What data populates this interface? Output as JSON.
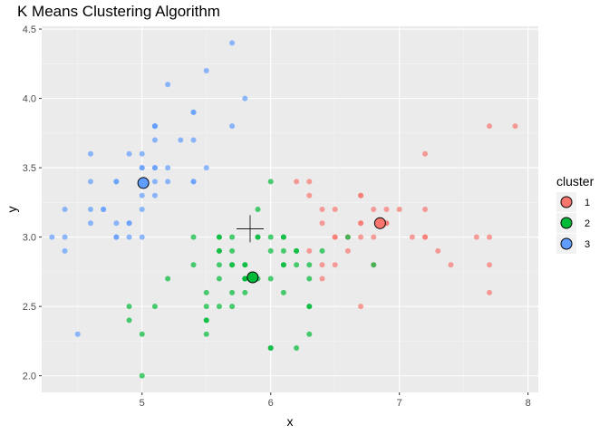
{
  "chart_data": {
    "type": "scatter",
    "title": "K Means Clustering Algorithm",
    "xlabel": "x",
    "ylabel": "y",
    "xlim": [
      4.22,
      8.08
    ],
    "ylim": [
      1.88,
      4.52
    ],
    "x_ticks": [
      5,
      6,
      7,
      8
    ],
    "y_ticks": [
      2.0,
      2.5,
      3.0,
      3.5,
      4.0,
      4.5
    ],
    "grid": true,
    "legend": {
      "title": "cluster",
      "placement": "right",
      "entries": [
        "1",
        "2",
        "3"
      ]
    },
    "colors": {
      "1": "#F8766D",
      "2": "#00BA38",
      "3": "#619CFF"
    },
    "series": [
      {
        "name": "1",
        "points": [
          [
            7.0,
            3.2
          ],
          [
            6.9,
            3.1
          ],
          [
            6.5,
            2.8
          ],
          [
            6.3,
            3.3
          ],
          [
            6.6,
            2.9
          ],
          [
            6.7,
            3.1
          ],
          [
            6.7,
            3.0
          ],
          [
            7.1,
            3.0
          ],
          [
            6.3,
            2.9
          ],
          [
            6.5,
            3.0
          ],
          [
            7.6,
            3.0
          ],
          [
            7.3,
            2.9
          ],
          [
            6.7,
            2.5
          ],
          [
            7.2,
            3.6
          ],
          [
            6.5,
            3.2
          ],
          [
            6.4,
            2.7
          ],
          [
            6.8,
            3.0
          ],
          [
            6.4,
            3.2
          ],
          [
            7.7,
            3.8
          ],
          [
            7.7,
            2.6
          ],
          [
            6.9,
            3.2
          ],
          [
            7.7,
            2.8
          ],
          [
            6.7,
            3.3
          ],
          [
            7.2,
            3.2
          ],
          [
            7.2,
            3.0
          ],
          [
            7.4,
            2.8
          ],
          [
            7.9,
            3.8
          ],
          [
            6.4,
            2.8
          ],
          [
            7.7,
            3.0
          ],
          [
            6.3,
            3.4
          ],
          [
            6.4,
            3.1
          ],
          [
            6.9,
            3.1
          ],
          [
            6.7,
            3.1
          ],
          [
            6.8,
            3.2
          ],
          [
            6.7,
            3.3
          ],
          [
            6.5,
            3.0
          ],
          [
            6.2,
            3.4
          ],
          [
            6.8,
            2.8
          ],
          [
            6.6,
            3.0
          ],
          [
            7.2,
            3.0
          ]
        ]
      },
      {
        "name": "2",
        "points": [
          [
            5.5,
            2.3
          ],
          [
            5.7,
            2.8
          ],
          [
            4.9,
            2.4
          ],
          [
            5.2,
            2.7
          ],
          [
            5.0,
            2.0
          ],
          [
            5.9,
            3.0
          ],
          [
            6.0,
            2.2
          ],
          [
            6.1,
            2.9
          ],
          [
            5.6,
            2.9
          ],
          [
            5.6,
            3.0
          ],
          [
            5.8,
            2.7
          ],
          [
            6.2,
            2.2
          ],
          [
            5.6,
            2.5
          ],
          [
            5.9,
            3.2
          ],
          [
            6.1,
            2.8
          ],
          [
            6.3,
            2.5
          ],
          [
            6.1,
            2.8
          ],
          [
            6.6,
            3.0
          ],
          [
            6.8,
            2.8
          ],
          [
            6.0,
            2.9
          ],
          [
            5.7,
            2.6
          ],
          [
            5.5,
            2.4
          ],
          [
            5.5,
            2.4
          ],
          [
            5.8,
            2.7
          ],
          [
            6.0,
            2.7
          ],
          [
            5.4,
            3.0
          ],
          [
            6.0,
            3.4
          ],
          [
            6.3,
            2.3
          ],
          [
            5.6,
            3.0
          ],
          [
            5.5,
            2.5
          ],
          [
            5.5,
            2.6
          ],
          [
            6.1,
            3.0
          ],
          [
            5.8,
            2.6
          ],
          [
            5.0,
            2.3
          ],
          [
            5.6,
            2.7
          ],
          [
            5.7,
            3.0
          ],
          [
            5.7,
            2.9
          ],
          [
            6.2,
            2.9
          ],
          [
            5.1,
            2.5
          ],
          [
            5.7,
            2.8
          ],
          [
            5.8,
            2.7
          ],
          [
            4.9,
            2.5
          ],
          [
            5.7,
            2.5
          ],
          [
            5.8,
            2.8
          ],
          [
            6.0,
            2.2
          ],
          [
            5.6,
            2.8
          ],
          [
            6.3,
            2.7
          ],
          [
            6.2,
            2.8
          ],
          [
            6.1,
            3.0
          ],
          [
            6.3,
            2.8
          ],
          [
            6.1,
            2.6
          ],
          [
            6.3,
            2.5
          ],
          [
            6.0,
            3.0
          ],
          [
            5.8,
            2.7
          ],
          [
            5.9,
            3.0
          ],
          [
            5.4,
            2.8
          ],
          [
            5.6,
            2.9
          ],
          [
            6.4,
            2.9
          ],
          [
            6.2,
            2.9
          ],
          [
            5.8,
            2.8
          ],
          [
            5.9,
            2.7
          ]
        ]
      },
      {
        "name": "3",
        "points": [
          [
            5.1,
            3.5
          ],
          [
            4.9,
            3.0
          ],
          [
            4.7,
            3.2
          ],
          [
            4.6,
            3.1
          ],
          [
            5.0,
            3.6
          ],
          [
            5.4,
            3.9
          ],
          [
            4.6,
            3.4
          ],
          [
            5.0,
            3.4
          ],
          [
            4.4,
            2.9
          ],
          [
            4.9,
            3.1
          ],
          [
            5.4,
            3.7
          ],
          [
            4.8,
            3.4
          ],
          [
            4.8,
            3.0
          ],
          [
            4.3,
            3.0
          ],
          [
            5.8,
            4.0
          ],
          [
            5.7,
            4.4
          ],
          [
            5.4,
            3.9
          ],
          [
            5.1,
            3.5
          ],
          [
            5.7,
            3.8
          ],
          [
            5.1,
            3.8
          ],
          [
            5.4,
            3.4
          ],
          [
            5.1,
            3.7
          ],
          [
            4.6,
            3.6
          ],
          [
            5.1,
            3.3
          ],
          [
            4.8,
            3.4
          ],
          [
            5.0,
            3.0
          ],
          [
            5.0,
            3.4
          ],
          [
            5.2,
            3.5
          ],
          [
            5.2,
            3.4
          ],
          [
            4.7,
            3.2
          ],
          [
            4.8,
            3.1
          ],
          [
            5.4,
            3.4
          ],
          [
            5.2,
            4.1
          ],
          [
            5.5,
            4.2
          ],
          [
            4.9,
            3.1
          ],
          [
            5.0,
            3.2
          ],
          [
            5.5,
            3.5
          ],
          [
            4.9,
            3.6
          ],
          [
            4.4,
            3.0
          ],
          [
            5.1,
            3.4
          ],
          [
            5.0,
            3.5
          ],
          [
            4.5,
            2.3
          ],
          [
            4.4,
            3.2
          ],
          [
            5.0,
            3.5
          ],
          [
            5.1,
            3.8
          ],
          [
            4.8,
            3.0
          ],
          [
            5.1,
            3.8
          ],
          [
            4.6,
            3.2
          ],
          [
            5.3,
            3.7
          ],
          [
            5.0,
            3.3
          ]
        ]
      }
    ],
    "centroids": [
      {
        "cluster": "1",
        "x": 6.85,
        "y": 3.1
      },
      {
        "cluster": "2",
        "x": 5.86,
        "y": 2.71
      },
      {
        "cluster": "3",
        "x": 5.01,
        "y": 3.39
      }
    ],
    "cross_marker": {
      "x": 5.84,
      "y": 3.06
    }
  }
}
